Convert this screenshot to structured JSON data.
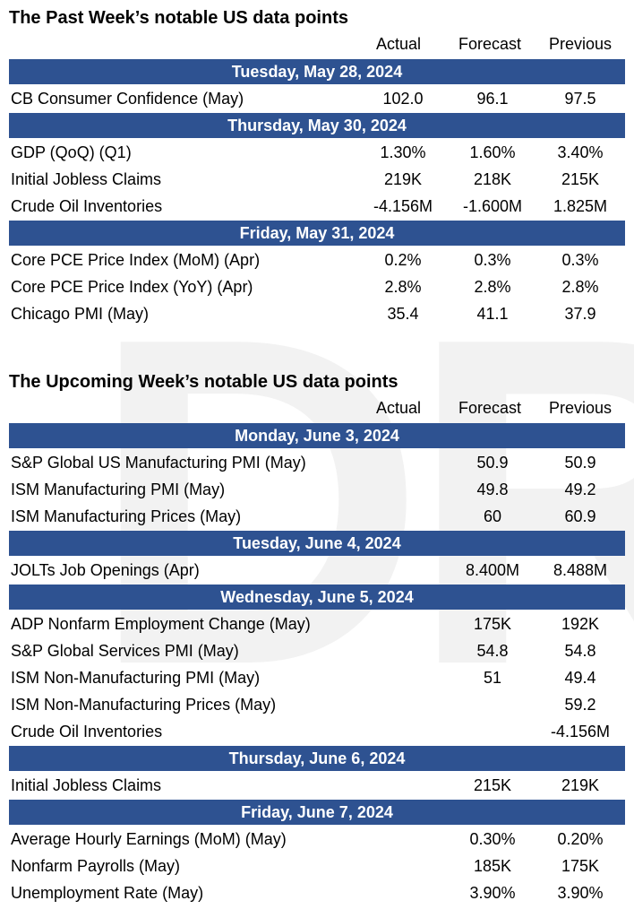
{
  "watermark": "DRA",
  "past": {
    "title": "The Past Week’s notable US data points",
    "headers": {
      "actual": "Actual",
      "forecast": "Forecast",
      "previous": "Previous"
    },
    "groups": [
      {
        "date": "Tuesday, May 28, 2024",
        "rows": [
          {
            "name": "CB Consumer Confidence (May)",
            "actual": "102.0",
            "forecast": "96.1",
            "previous": "97.5"
          }
        ]
      },
      {
        "date": "Thursday, May 30, 2024",
        "rows": [
          {
            "name": "GDP (QoQ) (Q1)",
            "actual": "1.30%",
            "forecast": "1.60%",
            "previous": "3.40%"
          },
          {
            "name": "Initial Jobless Claims",
            "actual": "219K",
            "forecast": "218K",
            "previous": "215K"
          },
          {
            "name": "Crude Oil Inventories",
            "actual": "-4.156M",
            "forecast": "-1.600M",
            "previous": "1.825M"
          }
        ]
      },
      {
        "date": "Friday, May 31, 2024",
        "rows": [
          {
            "name": "Core PCE Price Index (MoM) (Apr)",
            "actual": "0.2%",
            "forecast": "0.3%",
            "previous": "0.3%"
          },
          {
            "name": "Core PCE Price Index (YoY) (Apr)",
            "actual": "2.8%",
            "forecast": "2.8%",
            "previous": "2.8%"
          },
          {
            "name": "Chicago PMI (May)",
            "actual": "35.4",
            "forecast": "41.1",
            "previous": "37.9"
          }
        ]
      }
    ]
  },
  "upcoming": {
    "title": "The Upcoming Week’s notable US data points",
    "headers": {
      "actual": "Actual",
      "forecast": "Forecast",
      "previous": "Previous"
    },
    "groups": [
      {
        "date": "Monday, June 3, 2024",
        "rows": [
          {
            "name": "S&P Global US Manufacturing PMI (May)",
            "actual": "",
            "forecast": "50.9",
            "previous": "50.9"
          },
          {
            "name": "ISM Manufacturing PMI (May)",
            "actual": "",
            "forecast": "49.8",
            "previous": "49.2"
          },
          {
            "name": "ISM Manufacturing Prices (May)",
            "actual": "",
            "forecast": "60",
            "previous": "60.9"
          }
        ]
      },
      {
        "date": "Tuesday, June 4, 2024",
        "rows": [
          {
            "name": "JOLTs Job Openings (Apr)",
            "actual": "",
            "forecast": "8.400M",
            "previous": "8.488M"
          }
        ]
      },
      {
        "date": "Wednesday, June 5, 2024",
        "rows": [
          {
            "name": "ADP Nonfarm Employment Change (May)",
            "actual": "",
            "forecast": "175K",
            "previous": "192K"
          },
          {
            "name": "S&P Global Services PMI (May)",
            "actual": "",
            "forecast": "54.8",
            "previous": "54.8"
          },
          {
            "name": "ISM Non-Manufacturing PMI (May)",
            "actual": "",
            "forecast": "51",
            "previous": "49.4"
          },
          {
            "name": "ISM Non-Manufacturing Prices (May)",
            "actual": "",
            "forecast": "",
            "previous": "59.2"
          },
          {
            "name": "Crude Oil Inventories",
            "actual": "",
            "forecast": "",
            "previous": "-4.156M"
          }
        ]
      },
      {
        "date": "Thursday, June 6, 2024",
        "rows": [
          {
            "name": "Initial Jobless Claims",
            "actual": "",
            "forecast": "215K",
            "previous": "219K"
          }
        ]
      },
      {
        "date": "Friday, June 7, 2024",
        "rows": [
          {
            "name": "Average Hourly Earnings (MoM) (May)",
            "actual": "",
            "forecast": "0.30%",
            "previous": "0.20%"
          },
          {
            "name": "Nonfarm Payrolls (May)",
            "actual": "",
            "forecast": "185K",
            "previous": "175K"
          },
          {
            "name": "Unemployment Rate (May)",
            "actual": "",
            "forecast": "3.90%",
            "previous": "3.90%"
          }
        ]
      }
    ]
  }
}
